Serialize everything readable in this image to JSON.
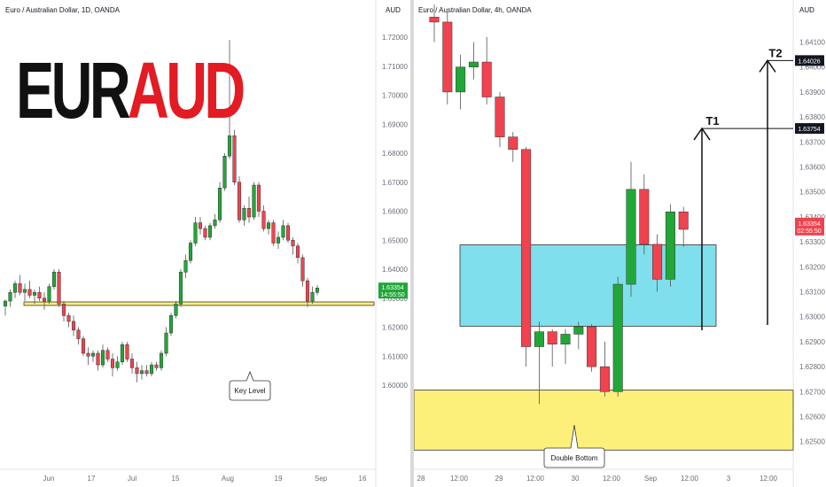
{
  "banner": {
    "part1": "EUR",
    "part2": "AUD"
  },
  "colors": {
    "up": "#21a737",
    "down": "#f0434f",
    "keyZone": "#fdf07a",
    "blueZone": "#7fdfec",
    "accent": "#e31b23"
  },
  "chart_data": [
    {
      "type": "candlestick",
      "title": "Euro / Australian Dollar, 1D, OANDA",
      "currency": "AUD",
      "y_ticks": [
        "1.72000",
        "1.71000",
        "1.70000",
        "1.69000",
        "1.68000",
        "1.67000",
        "1.66000",
        "1.65000",
        "1.64000",
        "1.63000",
        "1.62000",
        "1.61000",
        "1.60000"
      ],
      "x_ticks": [
        "Jun",
        "17",
        "Jul",
        "15",
        "Aug",
        "19",
        "Sep",
        "16"
      ],
      "ylim": [
        1.5965,
        1.7232
      ],
      "candles": [
        {
          "o": 1.6273,
          "h": 1.6295,
          "l": 1.624,
          "c": 1.629
        },
        {
          "o": 1.629,
          "h": 1.633,
          "l": 1.627,
          "c": 1.632
        },
        {
          "o": 1.632,
          "h": 1.636,
          "l": 1.63,
          "c": 1.635
        },
        {
          "o": 1.635,
          "h": 1.638,
          "l": 1.631,
          "c": 1.632
        },
        {
          "o": 1.632,
          "h": 1.635,
          "l": 1.629,
          "c": 1.633
        },
        {
          "o": 1.633,
          "h": 1.636,
          "l": 1.63,
          "c": 1.631
        },
        {
          "o": 1.631,
          "h": 1.633,
          "l": 1.628,
          "c": 1.632
        },
        {
          "o": 1.632,
          "h": 1.634,
          "l": 1.629,
          "c": 1.63
        },
        {
          "o": 1.63,
          "h": 1.632,
          "l": 1.626,
          "c": 1.629
        },
        {
          "o": 1.629,
          "h": 1.635,
          "l": 1.628,
          "c": 1.634
        },
        {
          "o": 1.634,
          "h": 1.64,
          "l": 1.633,
          "c": 1.639
        },
        {
          "o": 1.639,
          "h": 1.64,
          "l": 1.627,
          "c": 1.628
        },
        {
          "o": 1.628,
          "h": 1.629,
          "l": 1.622,
          "c": 1.624
        },
        {
          "o": 1.624,
          "h": 1.625,
          "l": 1.62,
          "c": 1.622
        },
        {
          "o": 1.622,
          "h": 1.624,
          "l": 1.617,
          "c": 1.619
        },
        {
          "o": 1.619,
          "h": 1.62,
          "l": 1.614,
          "c": 1.616
        },
        {
          "o": 1.616,
          "h": 1.617,
          "l": 1.61,
          "c": 1.611
        },
        {
          "o": 1.611,
          "h": 1.613,
          "l": 1.607,
          "c": 1.61
        },
        {
          "o": 1.61,
          "h": 1.612,
          "l": 1.608,
          "c": 1.611
        },
        {
          "o": 1.611,
          "h": 1.612,
          "l": 1.605,
          "c": 1.607
        },
        {
          "o": 1.607,
          "h": 1.614,
          "l": 1.606,
          "c": 1.612
        },
        {
          "o": 1.612,
          "h": 1.613,
          "l": 1.608,
          "c": 1.609
        },
        {
          "o": 1.609,
          "h": 1.611,
          "l": 1.603,
          "c": 1.606
        },
        {
          "o": 1.606,
          "h": 1.61,
          "l": 1.605,
          "c": 1.608
        },
        {
          "o": 1.608,
          "h": 1.615,
          "l": 1.607,
          "c": 1.614
        },
        {
          "o": 1.614,
          "h": 1.615,
          "l": 1.608,
          "c": 1.609
        },
        {
          "o": 1.609,
          "h": 1.611,
          "l": 1.604,
          "c": 1.606
        },
        {
          "o": 1.606,
          "h": 1.608,
          "l": 1.601,
          "c": 1.604
        },
        {
          "o": 1.604,
          "h": 1.607,
          "l": 1.602,
          "c": 1.605
        },
        {
          "o": 1.605,
          "h": 1.607,
          "l": 1.603,
          "c": 1.604
        },
        {
          "o": 1.604,
          "h": 1.608,
          "l": 1.603,
          "c": 1.607
        },
        {
          "o": 1.607,
          "h": 1.608,
          "l": 1.605,
          "c": 1.606
        },
        {
          "o": 1.606,
          "h": 1.612,
          "l": 1.605,
          "c": 1.611
        },
        {
          "o": 1.611,
          "h": 1.62,
          "l": 1.61,
          "c": 1.618
        },
        {
          "o": 1.618,
          "h": 1.625,
          "l": 1.617,
          "c": 1.624
        },
        {
          "o": 1.624,
          "h": 1.629,
          "l": 1.623,
          "c": 1.628
        },
        {
          "o": 1.628,
          "h": 1.64,
          "l": 1.627,
          "c": 1.639
        },
        {
          "o": 1.639,
          "h": 1.645,
          "l": 1.637,
          "c": 1.643
        },
        {
          "o": 1.643,
          "h": 1.65,
          "l": 1.642,
          "c": 1.649
        },
        {
          "o": 1.649,
          "h": 1.658,
          "l": 1.648,
          "c": 1.656
        },
        {
          "o": 1.656,
          "h": 1.658,
          "l": 1.652,
          "c": 1.654
        },
        {
          "o": 1.654,
          "h": 1.655,
          "l": 1.65,
          "c": 1.651
        },
        {
          "o": 1.651,
          "h": 1.656,
          "l": 1.65,
          "c": 1.655
        },
        {
          "o": 1.655,
          "h": 1.659,
          "l": 1.654,
          "c": 1.657
        },
        {
          "o": 1.657,
          "h": 1.67,
          "l": 1.656,
          "c": 1.668
        },
        {
          "o": 1.668,
          "h": 1.68,
          "l": 1.667,
          "c": 1.679
        },
        {
          "o": 1.679,
          "h": 1.719,
          "l": 1.678,
          "c": 1.686
        },
        {
          "o": 1.686,
          "h": 1.688,
          "l": 1.669,
          "c": 1.67
        },
        {
          "o": 1.67,
          "h": 1.672,
          "l": 1.656,
          "c": 1.657
        },
        {
          "o": 1.657,
          "h": 1.662,
          "l": 1.655,
          "c": 1.661
        },
        {
          "o": 1.661,
          "h": 1.665,
          "l": 1.656,
          "c": 1.658
        },
        {
          "o": 1.658,
          "h": 1.67,
          "l": 1.657,
          "c": 1.669
        },
        {
          "o": 1.669,
          "h": 1.67,
          "l": 1.658,
          "c": 1.66
        },
        {
          "o": 1.66,
          "h": 1.662,
          "l": 1.653,
          "c": 1.654
        },
        {
          "o": 1.654,
          "h": 1.657,
          "l": 1.652,
          "c": 1.656
        },
        {
          "o": 1.656,
          "h": 1.657,
          "l": 1.648,
          "c": 1.649
        },
        {
          "o": 1.649,
          "h": 1.653,
          "l": 1.647,
          "c": 1.651
        },
        {
          "o": 1.651,
          "h": 1.657,
          "l": 1.65,
          "c": 1.655
        },
        {
          "o": 1.655,
          "h": 1.656,
          "l": 1.649,
          "c": 1.65
        },
        {
          "o": 1.65,
          "h": 1.651,
          "l": 1.645,
          "c": 1.648
        },
        {
          "o": 1.648,
          "h": 1.649,
          "l": 1.642,
          "c": 1.644
        },
        {
          "o": 1.644,
          "h": 1.645,
          "l": 1.634,
          "c": 1.636
        },
        {
          "o": 1.636,
          "h": 1.637,
          "l": 1.627,
          "c": 1.629
        },
        {
          "o": 1.629,
          "h": 1.634,
          "l": 1.628,
          "c": 1.632
        },
        {
          "o": 1.632,
          "h": 1.6345,
          "l": 1.631,
          "c": 1.6335
        }
      ],
      "key_zone": [
        1.6275,
        1.6287
      ],
      "label": "Key Level",
      "last_price": "1.63354",
      "last_price_value": 1.63354,
      "countdown": "14:55:50"
    },
    {
      "type": "candlestick",
      "title": "Euro / Australian Dollar, 4h, OANDA",
      "currency": "AUD",
      "y_ticks": [
        "1.64100",
        "1.64000",
        "1.63900",
        "1.63800",
        "1.63700",
        "1.63600",
        "1.63500",
        "1.63400",
        "1.63300",
        "1.63200",
        "1.63100",
        "1.63000",
        "1.62900",
        "1.62800",
        "1.62700",
        "1.62600",
        "1.62500"
      ],
      "x_ticks": [
        "28",
        "12:00",
        "29",
        "12:00",
        "30",
        "12:00",
        "Sep",
        "12:00",
        "3",
        "12:00"
      ],
      "ylim": [
        1.6245,
        1.6418
      ],
      "candles": [
        {
          "o": 1.642,
          "h": 1.6425,
          "l": 1.641,
          "c": 1.6418
        },
        {
          "o": 1.6418,
          "h": 1.6422,
          "l": 1.6385,
          "c": 1.639
        },
        {
          "o": 1.639,
          "h": 1.6405,
          "l": 1.6383,
          "c": 1.64
        },
        {
          "o": 1.64,
          "h": 1.641,
          "l": 1.6395,
          "c": 1.6402
        },
        {
          "o": 1.6402,
          "h": 1.6412,
          "l": 1.6385,
          "c": 1.6388
        },
        {
          "o": 1.6388,
          "h": 1.639,
          "l": 1.6368,
          "c": 1.6372
        },
        {
          "o": 1.6372,
          "h": 1.6374,
          "l": 1.6362,
          "c": 1.6367
        },
        {
          "o": 1.6367,
          "h": 1.6368,
          "l": 1.628,
          "c": 1.6288
        },
        {
          "o": 1.6288,
          "h": 1.6298,
          "l": 1.6265,
          "c": 1.6294
        },
        {
          "o": 1.6294,
          "h": 1.6295,
          "l": 1.628,
          "c": 1.6289
        },
        {
          "o": 1.6289,
          "h": 1.6295,
          "l": 1.6281,
          "c": 1.6293
        },
        {
          "o": 1.6293,
          "h": 1.6298,
          "l": 1.6287,
          "c": 1.6296
        },
        {
          "o": 1.6296,
          "h": 1.6297,
          "l": 1.6278,
          "c": 1.628
        },
        {
          "o": 1.628,
          "h": 1.629,
          "l": 1.6268,
          "c": 1.627
        },
        {
          "o": 1.627,
          "h": 1.6316,
          "l": 1.6268,
          "c": 1.6313
        },
        {
          "o": 1.6313,
          "h": 1.6362,
          "l": 1.6308,
          "c": 1.6351
        },
        {
          "o": 1.6351,
          "h": 1.6357,
          "l": 1.6325,
          "c": 1.6329
        },
        {
          "o": 1.6329,
          "h": 1.6333,
          "l": 1.631,
          "c": 1.6315
        },
        {
          "o": 1.6315,
          "h": 1.6345,
          "l": 1.6312,
          "c": 1.6342
        },
        {
          "o": 1.6342,
          "h": 1.6344,
          "l": 1.6328,
          "c": 1.6335
        }
      ],
      "zones": {
        "blue": [
          1.62962,
          1.63288
        ],
        "yellow": [
          1.62466,
          1.62706
        ]
      },
      "targets": [
        {
          "label": "T1",
          "price": "1.63754",
          "value": 1.63754
        },
        {
          "label": "T2",
          "price": "1.64026",
          "value": 1.64026
        }
      ],
      "label": "Double Bottom",
      "last_price": "1.63354",
      "last_price_sub": "02:55:50",
      "last_price_value": 1.63354
    }
  ]
}
